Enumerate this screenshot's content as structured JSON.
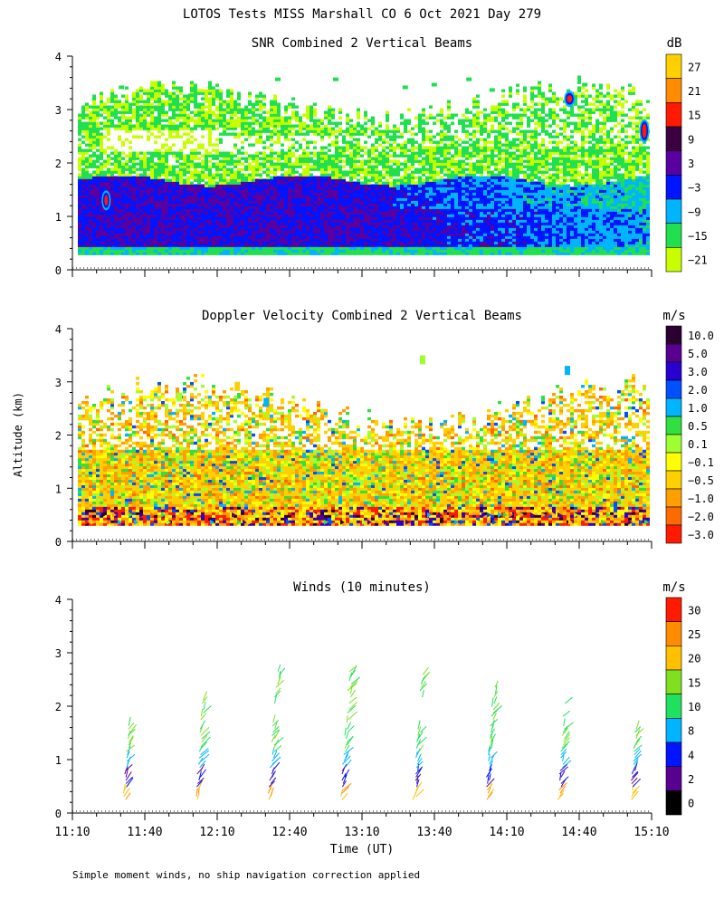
{
  "figure": {
    "title": "LOTOS Tests MISS Marshall CO   6 Oct 2021 Day 279",
    "y_axis_label": "Altitude (km)",
    "x_axis_label": "Time (UT)",
    "footnote": "Simple moment winds, no ship navigation correction applied",
    "x_ticks": [
      "11:10",
      "11:40",
      "12:10",
      "12:40",
      "13:10",
      "13:40",
      "14:10",
      "14:40",
      "15:10"
    ]
  },
  "chart_data": [
    {
      "type": "heatmap",
      "title": "SNR Combined 2 Vertical Beams",
      "xlabel": "Time (UT)",
      "ylabel": "Altitude (km)",
      "x_range_minutes_utc": [
        670,
        910
      ],
      "ylim": [
        0,
        4
      ],
      "y_ticks": [
        0,
        1,
        2,
        3,
        4
      ],
      "colorbar": {
        "unit": "dB",
        "labels": [
          "27",
          "21",
          "15",
          "9",
          "3",
          "−3",
          "−9",
          "−15",
          "−21"
        ],
        "colors": [
          "#ffd000",
          "#ff8c00",
          "#ff1a00",
          "#3a0040",
          "#5a00a0",
          "#0014ff",
          "#00b4ff",
          "#20e050",
          "#c8ff00"
        ]
      },
      "description_of_field": "low-altitude (0.3-1.7 km) region dominated by -9 to 3 dB (blue); 1.7-3.2 km mostly -21 to -9 dB (green/cyan); isolated high-SNR spots near 11:34 at 1.3 km, 14:36 at 3.2 km and 15:06 at 2.6 km"
    },
    {
      "type": "heatmap",
      "title": "Doppler Velocity Combined 2 Vertical Beams",
      "xlabel": "Time (UT)",
      "ylabel": "Altitude (km)",
      "x_range_minutes_utc": [
        670,
        910
      ],
      "ylim": [
        0,
        4
      ],
      "y_ticks": [
        0,
        1,
        2,
        3,
        4
      ],
      "colorbar": {
        "unit": "m/s",
        "labels": [
          "10.0",
          "5.0",
          "3.0",
          "2.0",
          "1.0",
          "0.5",
          "0.1",
          "−0.1",
          "−0.5",
          "−1.0",
          "−2.0",
          "−3.0"
        ],
        "colors": [
          "#2a0030",
          "#5a0090",
          "#2800d0",
          "#0050ff",
          "#00b4ff",
          "#30e040",
          "#a0ff30",
          "#ffff00",
          "#ffd000",
          "#ffa000",
          "#ff6a00",
          "#ff1a00"
        ]
      },
      "description_of_field": "mostly -0.1 to -1.0 m/s (yellow/orange) below 2 km with patches of 0.1-1.0 m/s; noisy high positive values near 0.3-0.6 km"
    },
    {
      "type": "scatter",
      "title": "Winds (10 minutes)",
      "xlabel": "Time (UT)",
      "ylabel": "Altitude (km)",
      "x_range_minutes_utc": [
        670,
        910
      ],
      "ylim": [
        0,
        4
      ],
      "y_ticks": [
        0,
        1,
        2,
        3,
        4
      ],
      "profile_times_utc": [
        "11:35",
        "12:05",
        "12:35",
        "13:05",
        "13:35",
        "14:05",
        "14:35",
        "15:05"
      ],
      "colorbar": {
        "unit": "m/s",
        "labels": [
          "30",
          "25",
          "20",
          "15",
          "10",
          "8",
          "4",
          "2",
          "0"
        ],
        "colors": [
          "#ff1a00",
          "#ff8c00",
          "#ffc000",
          "#80e020",
          "#20e060",
          "#00b4ff",
          "#0014ff",
          "#5a0090",
          "#000000"
        ]
      }
    }
  ]
}
